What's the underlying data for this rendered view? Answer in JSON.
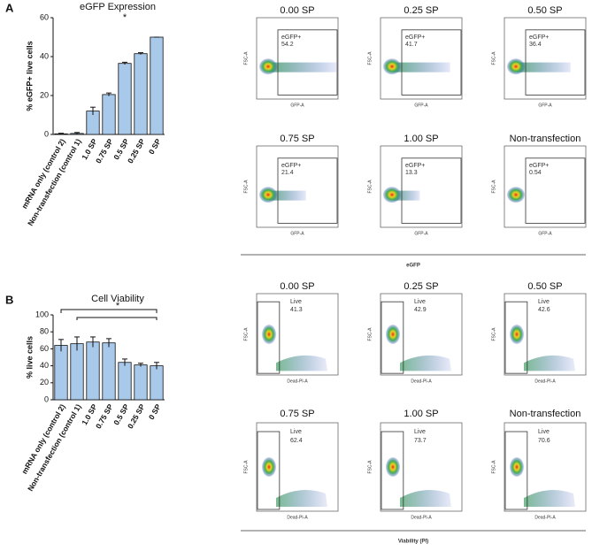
{
  "chart_data": [
    {
      "type": "bar",
      "letter": "A",
      "title": "eGFP Expression",
      "y_label": "% eGFP+ live cells",
      "annotation": "*",
      "categories": [
        "mRNA only (control 2)",
        "Non-transfection (control 1)",
        "1.0 SP",
        "0.75 SP",
        "0.5 SP",
        "0.25 SP",
        "0 SP"
      ],
      "values": [
        0.3,
        0.5,
        12,
        20.5,
        36.5,
        41.5,
        50
      ],
      "errors": [
        0.3,
        0.5,
        2,
        0.8,
        0.6,
        0.5,
        0
      ],
      "color": "#a9c9ea",
      "ylim": [
        0,
        60
      ],
      "yticks": [
        0,
        20,
        40,
        60
      ]
    },
    {
      "type": "bar",
      "letter": "B",
      "title": "Cell Viability",
      "y_label": "% live cells",
      "annotation": "*",
      "categories": [
        "mRNA only (control 2)",
        "Non-transfection (control 1)",
        "1.0 SP",
        "0.75 SP",
        "0.5 SP",
        "0.25 SP",
        "0 SP"
      ],
      "values": [
        64,
        66,
        68,
        67,
        44,
        41,
        40
      ],
      "errors": [
        7,
        8,
        6,
        5,
        4,
        2,
        4
      ],
      "color": "#a9c9ea",
      "ylim": [
        0,
        100
      ],
      "yticks": [
        0,
        20,
        40,
        60,
        80,
        100
      ]
    }
  ],
  "flow_panels": [
    {
      "x_label": "GFP-A",
      "y_label": "FSC-A",
      "gate": "eGFP+",
      "section_label": "eGFP",
      "plots": [
        {
          "title": "0.00 SP",
          "value": "54.2"
        },
        {
          "title": "0.25 SP",
          "value": "41.7"
        },
        {
          "title": "0.50 SP",
          "value": "36.4"
        },
        {
          "title": "0.75 SP",
          "value": "21.4"
        },
        {
          "title": "1.00 SP",
          "value": "13.3"
        },
        {
          "title": "Non-transfection",
          "value": "0.54"
        }
      ]
    },
    {
      "x_label": "Dead-PI-A",
      "y_label": "FSC-A",
      "gate": "Live",
      "section_label": "Viability (PI)",
      "plots": [
        {
          "title": "0.00 SP",
          "value": "41.3"
        },
        {
          "title": "0.25 SP",
          "value": "42.9"
        },
        {
          "title": "0.50 SP",
          "value": "42.6"
        },
        {
          "title": "0.75 SP",
          "value": "62.4"
        },
        {
          "title": "1.00 SP",
          "value": "73.7"
        },
        {
          "title": "Non-transfection",
          "value": "70.6"
        }
      ]
    }
  ]
}
